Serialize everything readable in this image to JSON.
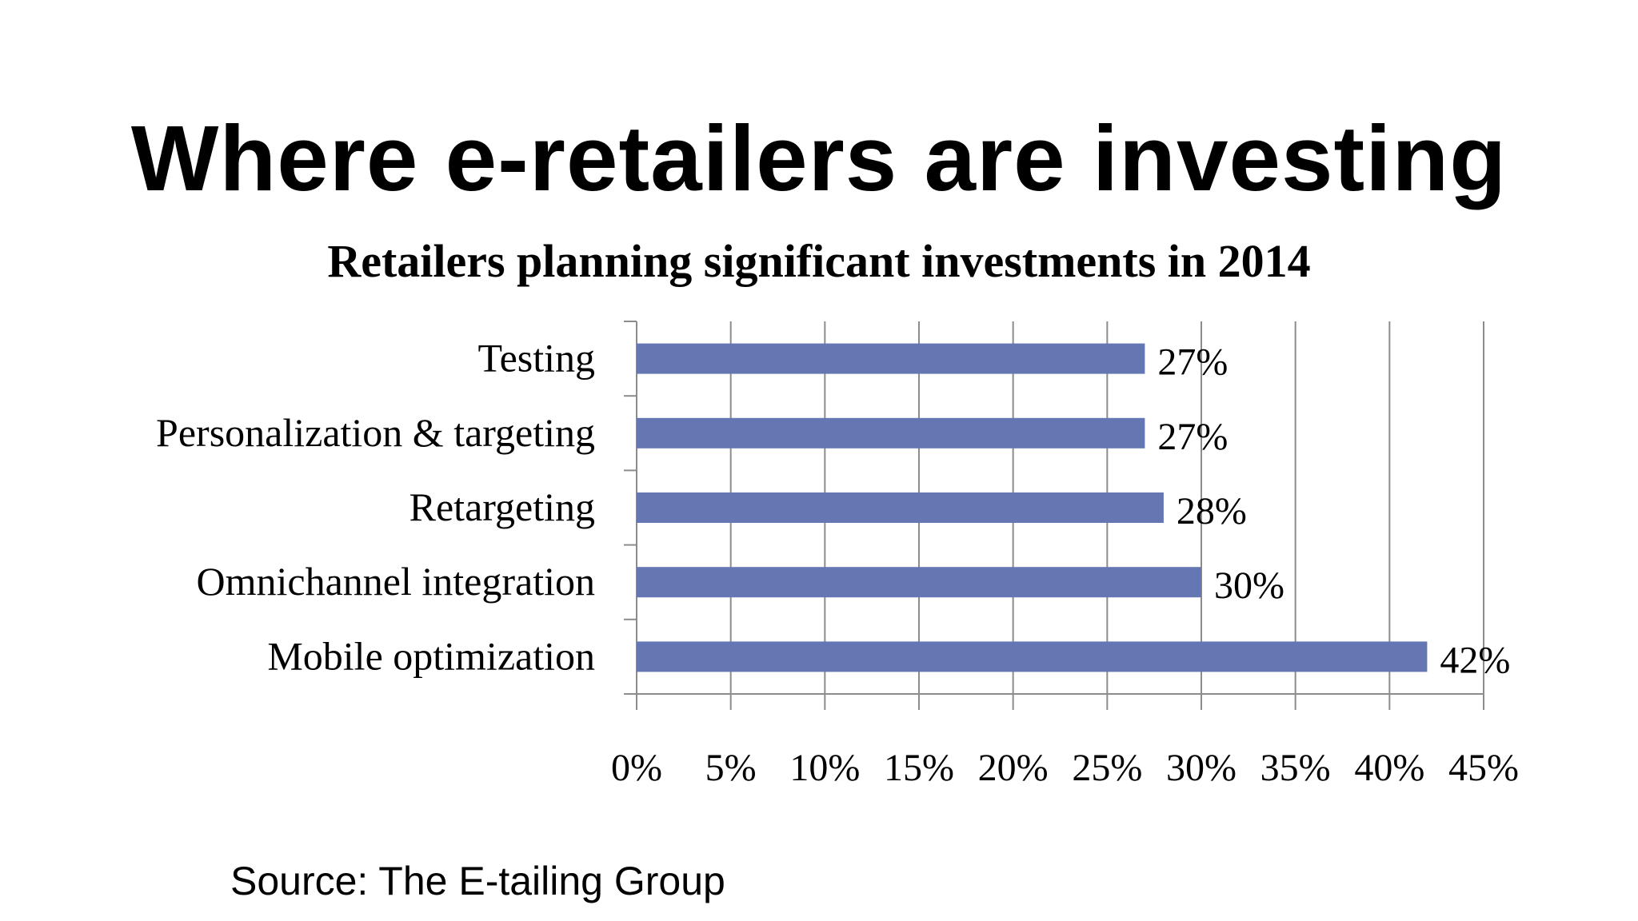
{
  "title": "Where e-retailers are investing",
  "source": "Source: The E-tailing Group",
  "colors": {
    "bar": "#6577B3",
    "gridline": "#8C8C8C",
    "axis": "#8C8C8C"
  },
  "chart_data": {
    "type": "bar",
    "orientation": "horizontal",
    "title": "Retailers planning significant investments in 2014",
    "categories": [
      "Testing",
      "Personalization & targeting",
      "Retargeting",
      "Omnichannel integration",
      "Mobile optimization"
    ],
    "values": [
      27,
      27,
      28,
      30,
      42
    ],
    "data_labels": [
      "27%",
      "27%",
      "28%",
      "30%",
      "42%"
    ],
    "xlim": [
      0,
      45
    ],
    "xticks": [
      0,
      5,
      10,
      15,
      20,
      25,
      30,
      35,
      40,
      45
    ],
    "xtick_labels": [
      "0%",
      "5%",
      "10%",
      "15%",
      "20%",
      "25%",
      "30%",
      "35%",
      "40%",
      "45%"
    ],
    "grid": true,
    "legend": "none"
  }
}
